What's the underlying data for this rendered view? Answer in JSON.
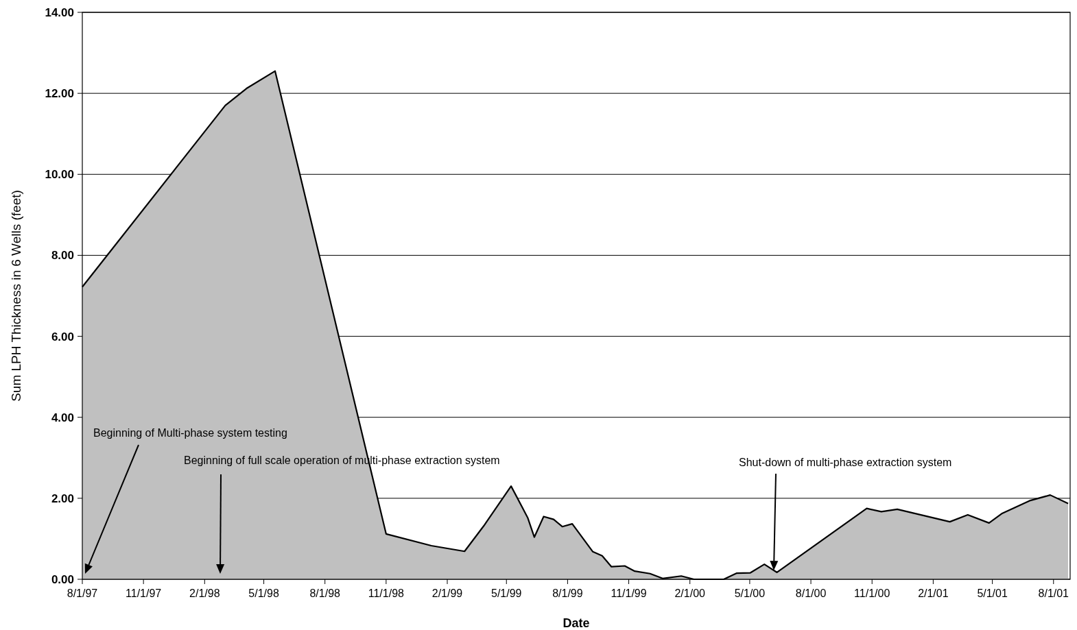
{
  "chart_data": {
    "type": "area",
    "xlabel": "Date",
    "ylabel": "Sum LPH Thickness in 6 Wells (feet)",
    "x": [
      "1997-08-01",
      "1998-03-04",
      "1998-04-05",
      "1998-05-18",
      "1998-11-01",
      "1999-01-08",
      "1999-02-27",
      "1999-03-28",
      "1999-05-08",
      "1999-06-02",
      "1999-06-12",
      "1999-06-26",
      "1999-07-11",
      "1999-07-24",
      "1999-08-08",
      "1999-09-08",
      "1999-09-22",
      "1999-10-06",
      "1999-10-26",
      "1999-11-10",
      "1999-12-03",
      "1999-12-22",
      "2000-01-19",
      "2000-02-07",
      "2000-03-23",
      "2000-04-11",
      "2000-05-02",
      "2000-05-23",
      "2000-06-11",
      "2000-10-24",
      "2000-11-15",
      "2000-12-09",
      "2001-02-26",
      "2001-03-25",
      "2001-04-26",
      "2001-05-15",
      "2001-06-26",
      "2001-07-27",
      "2001-08-23"
    ],
    "series": [
      {
        "color": "#c0c0c0",
        "values": [
          7.22,
          11.7,
          12.12,
          12.55,
          1.12,
          0.83,
          0.69,
          1.32,
          2.3,
          1.52,
          1.04,
          1.55,
          1.48,
          1.3,
          1.37,
          0.68,
          0.58,
          0.31,
          0.33,
          0.2,
          0.14,
          0.02,
          0.08,
          0,
          0,
          0.15,
          0.16,
          0.37,
          0.17,
          1.75,
          1.67,
          1.73,
          1.42,
          1.59,
          1.39,
          1.62,
          1.94,
          2.08,
          1.87
        ]
      }
    ],
    "xlim": [
      "1997-08-01",
      "2001-08-26"
    ],
    "xticks": [
      {
        "value": "1997-08-01",
        "label": "8/1/97"
      },
      {
        "value": "1997-11-01",
        "label": "11/1/97"
      },
      {
        "value": "1998-02-01",
        "label": "2/1/98"
      },
      {
        "value": "1998-05-01",
        "label": "5/1/98"
      },
      {
        "value": "1998-08-01",
        "label": "8/1/98"
      },
      {
        "value": "1998-11-01",
        "label": "11/1/98"
      },
      {
        "value": "1999-02-01",
        "label": "2/1/99"
      },
      {
        "value": "1999-05-01",
        "label": "5/1/99"
      },
      {
        "value": "1999-08-01",
        "label": "8/1/99"
      },
      {
        "value": "1999-11-01",
        "label": "11/1/99"
      },
      {
        "value": "2000-02-01",
        "label": "2/1/00"
      },
      {
        "value": "2000-05-01",
        "label": "5/1/00"
      },
      {
        "value": "2000-08-01",
        "label": "8/1/00"
      },
      {
        "value": "2000-11-01",
        "label": "11/1/00"
      },
      {
        "value": "2001-02-01",
        "label": "2/1/01"
      },
      {
        "value": "2001-05-01",
        "label": "5/1/01"
      },
      {
        "value": "2001-08-01",
        "label": "8/1/01"
      }
    ],
    "ylim": [
      0,
      14
    ],
    "yticks": [
      {
        "value": 0,
        "label": "0.00"
      },
      {
        "value": 2,
        "label": "2.00"
      },
      {
        "value": 4,
        "label": "4.00"
      },
      {
        "value": 6,
        "label": "6.00"
      },
      {
        "value": 8,
        "label": "8.00"
      },
      {
        "value": 10,
        "label": "10.00"
      },
      {
        "value": 12,
        "label": "12.00"
      },
      {
        "value": 14,
        "label": "14.00"
      }
    ],
    "grid": "y",
    "annotations": [
      "Beginning of Multi-phase system testing",
      "Beginning of full scale operation of multi-phase extraction system",
      "Shut-down of multi-phase extraction system"
    ]
  }
}
